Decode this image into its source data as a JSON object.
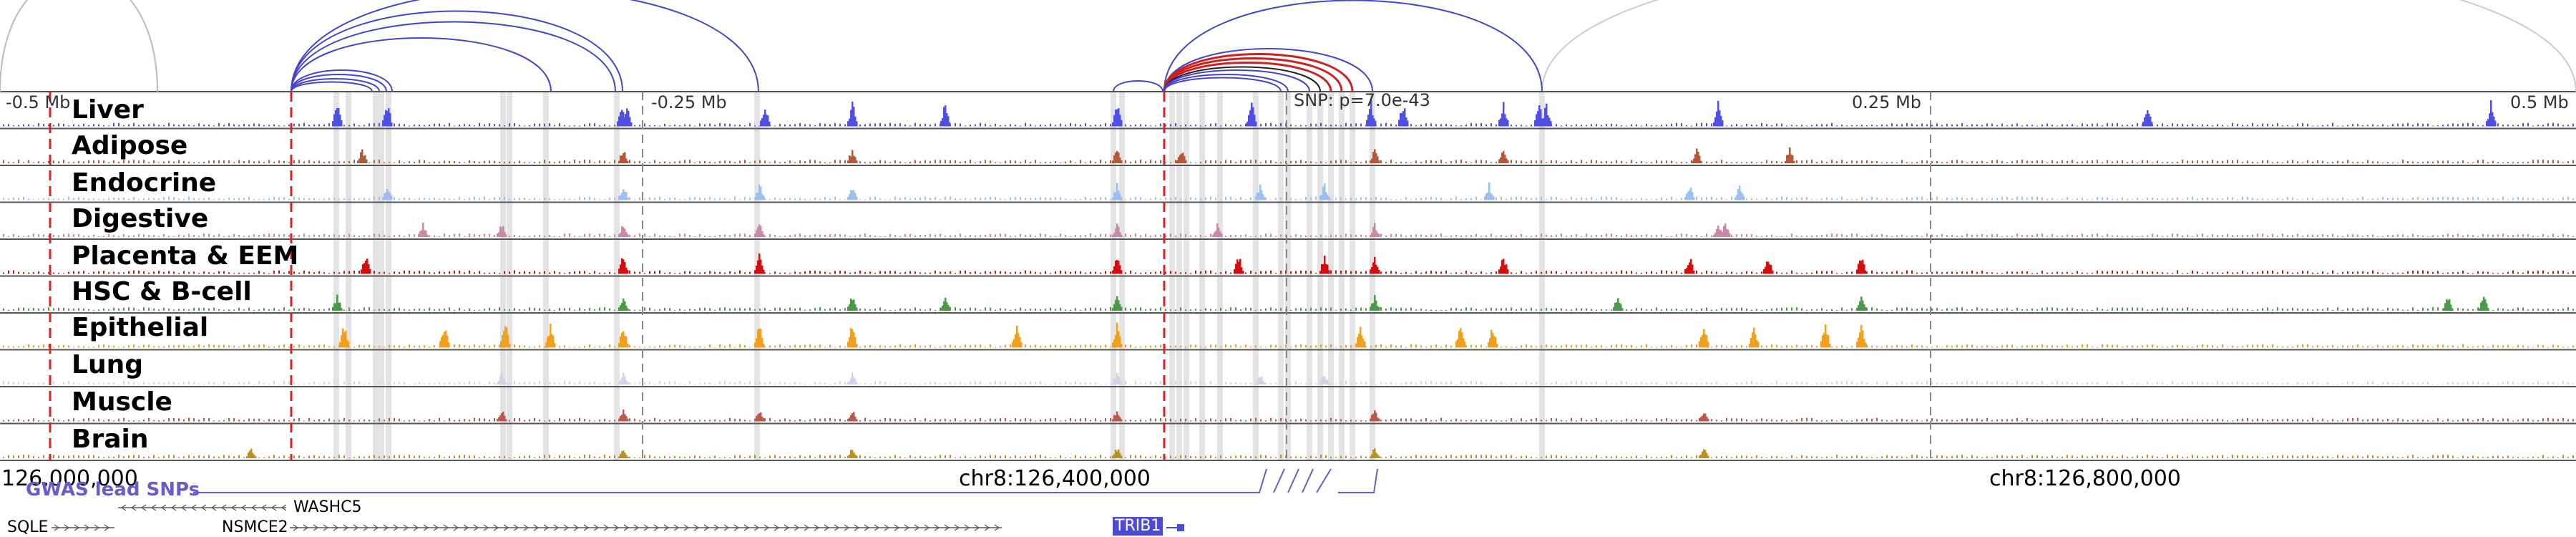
{
  "tracks": [
    {
      "label": "Liver",
      "color": "#5050e0"
    },
    {
      "label": "Adipose",
      "color": "#b05a3a"
    },
    {
      "label": "Endocrine",
      "color": "#9dbff0"
    },
    {
      "label": "Digestive",
      "color": "#c98aa8"
    },
    {
      "label": "Placenta & EEM",
      "color": "#d01010"
    },
    {
      "label": "HSC & B-cell",
      "color": "#4a9a4a"
    },
    {
      "label": "Epithelial",
      "color": "#f0a020"
    },
    {
      "label": "Lung",
      "color": "#d8d0ea"
    },
    {
      "label": "Muscle",
      "color": "#b85a50"
    },
    {
      "label": "Brain",
      "color": "#b8902a"
    }
  ],
  "scale_labels": {
    "minus_half": "-0.5 Mb",
    "minus_quarter": "-0.25 Mb",
    "snp": "SNP: p=7.0e-43",
    "plus_quarter": "0.25 Mb",
    "plus_half": "0.5 Mb"
  },
  "coordinates": {
    "left": "126,000,000",
    "middle": "chr8:126,400,000",
    "right": "chr8:126,800,000"
  },
  "genes": {
    "gwas": "GWAS lead SNPs",
    "washc5": "WASHC5",
    "sqle": "SQLE",
    "nsmce2": "NSMCE2",
    "trib1": "TRIB1"
  }
}
